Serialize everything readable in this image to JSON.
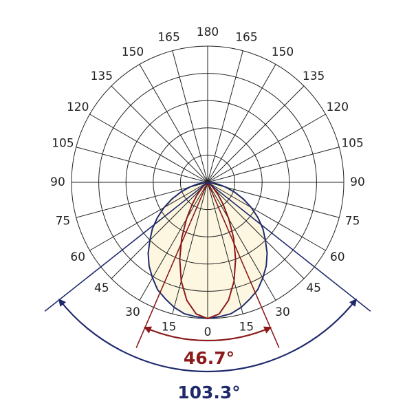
{
  "chart_data": {
    "type": "polar",
    "angles": [
      0,
      15,
      30,
      45,
      60,
      75,
      90,
      105,
      120,
      135,
      150,
      165,
      180
    ],
    "rlim": [
      0,
      1
    ],
    "rticks": [
      0.2,
      0.4,
      0.6,
      0.8,
      1
    ],
    "theta": [
      -90,
      -85,
      -80,
      -75,
      -70,
      -65,
      -60,
      -55,
      -50,
      -45,
      -40,
      -35,
      -30,
      -25,
      -20,
      -15,
      -10,
      -5,
      0,
      5,
      10,
      15,
      20,
      25,
      30,
      35,
      40,
      45,
      50,
      55,
      60,
      65,
      70,
      75,
      80,
      85,
      90
    ],
    "series": [
      {
        "color": "#1f2a6b",
        "fill": "#fdf7e1",
        "values": [
          0,
          0.03,
          0.08,
          0.14,
          0.21,
          0.29,
          0.37,
          0.45,
          0.53,
          0.6,
          0.68,
          0.75,
          0.81,
          0.87,
          0.91,
          0.95,
          0.98,
          0.99,
          1,
          0.99,
          0.98,
          0.95,
          0.91,
          0.87,
          0.81,
          0.75,
          0.68,
          0.6,
          0.53,
          0.45,
          0.37,
          0.29,
          0.21,
          0.14,
          0.08,
          0.03,
          0
        ]
      },
      {
        "color": "#8b1a1a",
        "values": [
          0,
          0,
          0,
          0,
          0,
          0,
          0,
          0.01,
          0.03,
          0.06,
          0.12,
          0.2,
          0.31,
          0.45,
          0.6,
          0.75,
          0.88,
          0.97,
          1,
          0.97,
          0.88,
          0.75,
          0.6,
          0.45,
          0.31,
          0.2,
          0.12,
          0.06,
          0.03,
          0.01,
          0,
          0,
          0,
          0,
          0,
          0,
          0
        ]
      }
    ],
    "beams": [
      {
        "value": 46.7,
        "label": "46.7°",
        "color": "#8b1a1a"
      },
      {
        "value": 103.3,
        "label": "103.3°",
        "color": "#1f2a6b"
      }
    ]
  }
}
